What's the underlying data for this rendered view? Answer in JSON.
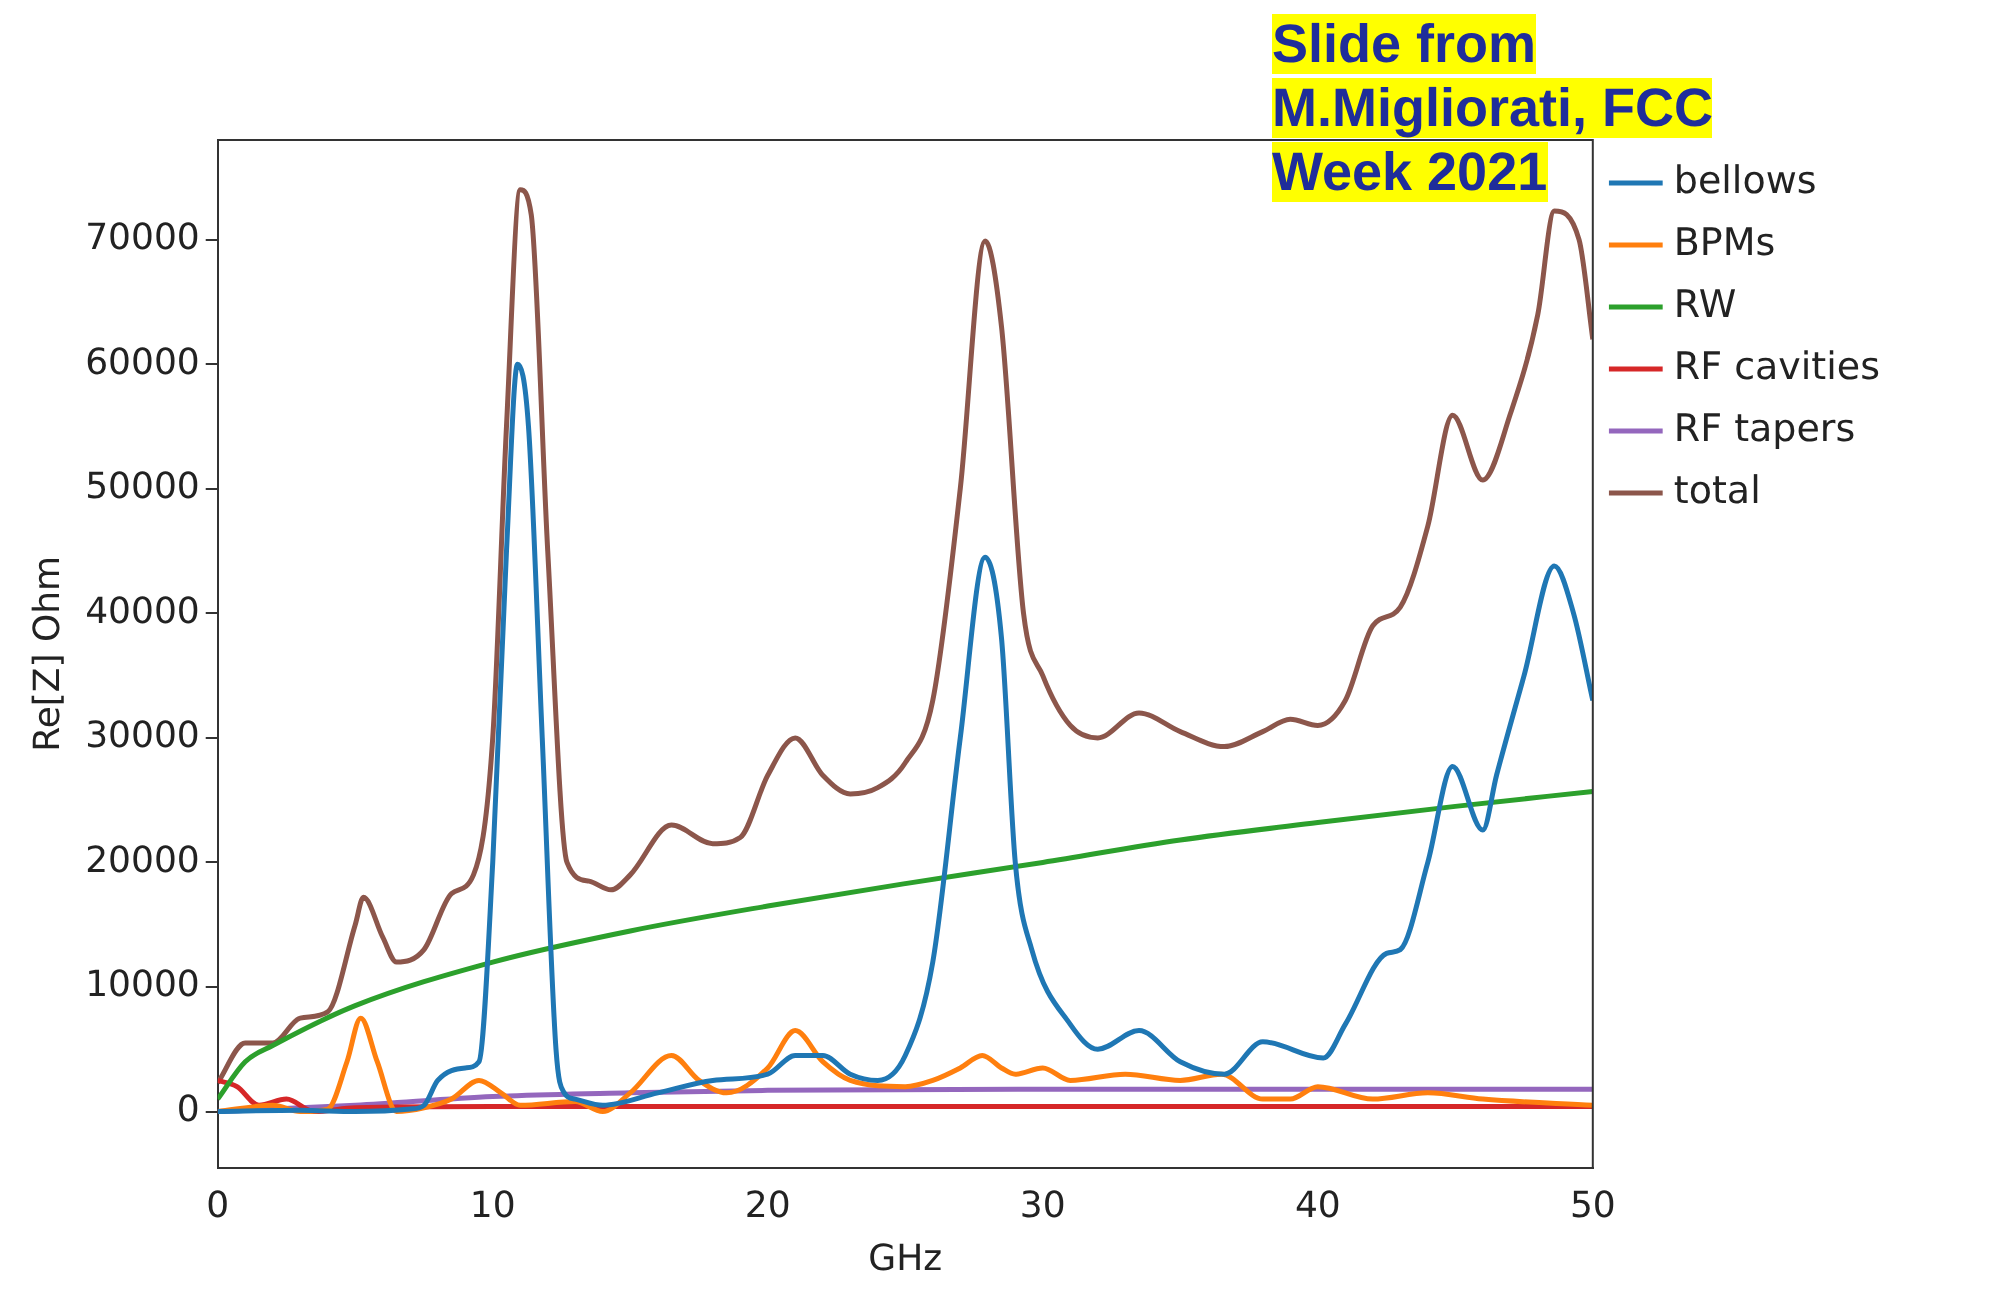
{
  "chart_data": {
    "type": "line",
    "xlabel": "GHz",
    "ylabel": "Re[Z] Ohm",
    "annotations": [
      "Slide from M.Migliorati, FCC Week 2021"
    ],
    "xlim": [
      0,
      50
    ],
    "xticks": [
      0,
      10,
      20,
      30,
      40,
      50
    ],
    "ylim": [
      -4500,
      78000
    ],
    "yticks": [
      0,
      10000,
      20000,
      30000,
      40000,
      50000,
      60000,
      70000
    ],
    "legend": "top right",
    "marker": "none",
    "line_style": "solid",
    "series": [
      {
        "name": "bellows",
        "color": "#1f77b4",
        "x": [
          0,
          3,
          5,
          7,
          7.5,
          8,
          9,
          9.5,
          10,
          10.5,
          10.9,
          11.3,
          11.8,
          12.3,
          12.6,
          13,
          14,
          16,
          18,
          20,
          21,
          22,
          23,
          24,
          25,
          26,
          27,
          27.9,
          28.5,
          29,
          29.6,
          31,
          32,
          33.5,
          35,
          36.6,
          38,
          40.2,
          41,
          42.5,
          43,
          44,
          44.9,
          46,
          46.5,
          47.5,
          48.6,
          49.3,
          50
        ],
        "values": [
          0,
          100,
          0,
          200,
          500,
          2500,
          3500,
          4000,
          20000,
          45000,
          60000,
          55000,
          30000,
          5000,
          1500,
          1000,
          500,
          1500,
          2500,
          3000,
          4500,
          4500,
          3000,
          2500,
          4500,
          12000,
          30000,
          44500,
          38000,
          20000,
          13000,
          7000,
          5000,
          6500,
          4000,
          3000,
          5600,
          4300,
          7000,
          12700,
          13000,
          20000,
          27700,
          22600,
          27000,
          35000,
          43800,
          40000,
          33000
        ]
      },
      {
        "name": "BPMs",
        "color": "#ff7f0e",
        "x": [
          0,
          2,
          3,
          4,
          4.7,
          5.2,
          5.8,
          6.5,
          7.5,
          8.5,
          9.5,
          10.3,
          11,
          13,
          14,
          15,
          16.5,
          17.5,
          18.5,
          20,
          21,
          22,
          23,
          25,
          26,
          27,
          27.8,
          28.5,
          29,
          30,
          31,
          33,
          35,
          36.5,
          38,
          39,
          40,
          42,
          44,
          46,
          50
        ],
        "values": [
          0,
          500,
          0,
          200,
          4000,
          7500,
          4000,
          0,
          300,
          1000,
          2500,
          1500,
          500,
          800,
          0,
          1500,
          4500,
          2500,
          1500,
          3500,
          6500,
          4000,
          2500,
          2000,
          2500,
          3500,
          4500,
          3500,
          3000,
          3500,
          2500,
          3000,
          2500,
          3000,
          1000,
          1000,
          2000,
          1000,
          1500,
          1000,
          500
        ]
      },
      {
        "name": "RW",
        "color": "#2ca02c",
        "x": [
          0,
          1,
          2,
          5,
          10,
          15,
          20,
          25,
          30,
          35,
          40,
          45,
          50
        ],
        "values": [
          1000,
          4000,
          5300,
          8500,
          12000,
          14500,
          16500,
          18300,
          20000,
          21800,
          23200,
          24500,
          25700
        ]
      },
      {
        "name": "RF cavities",
        "color": "#d62728",
        "x": [
          0,
          0.7,
          1.5,
          2.5,
          3.5,
          5,
          10,
          20,
          30,
          40,
          50
        ],
        "values": [
          2500,
          2000,
          500,
          1000,
          0,
          300,
          400,
          400,
          400,
          400,
          400
        ]
      },
      {
        "name": "RF tapers",
        "color": "#9467bd",
        "x": [
          0,
          5,
          10,
          15,
          20,
          30,
          40,
          50
        ],
        "values": [
          0,
          500,
          1200,
          1500,
          1700,
          1800,
          1800,
          1800
        ]
      },
      {
        "name": "total",
        "color": "#8c564b",
        "x": [
          0,
          1,
          2,
          3,
          4,
          5,
          5.3,
          6,
          6.5,
          7.5,
          8.5,
          9.3,
          10,
          10.5,
          11,
          11.4,
          12,
          12.7,
          13.5,
          14.3,
          15,
          16.5,
          18,
          19,
          20,
          21,
          22,
          23,
          24,
          25,
          26,
          27,
          27.9,
          28.5,
          29.3,
          30,
          31,
          32,
          33.5,
          35,
          36.6,
          38,
          39,
          40,
          41,
          42,
          43,
          44,
          44.9,
          46,
          47,
          48,
          48.6,
          49.5,
          50
        ],
        "values": [
          2300,
          5500,
          5500,
          7500,
          8000,
          15000,
          17200,
          14000,
          12000,
          13000,
          17500,
          19000,
          30000,
          55000,
          74000,
          72000,
          45000,
          20000,
          18500,
          17800,
          19000,
          23000,
          21500,
          22000,
          27000,
          30000,
          27000,
          25500,
          26000,
          28000,
          33000,
          50000,
          69900,
          63000,
          40000,
          35000,
          31000,
          30000,
          32000,
          30500,
          29300,
          30500,
          31500,
          31000,
          33000,
          39000,
          40500,
          47000,
          55900,
          50700,
          56000,
          64000,
          72300,
          70000,
          62000
        ]
      }
    ]
  }
}
